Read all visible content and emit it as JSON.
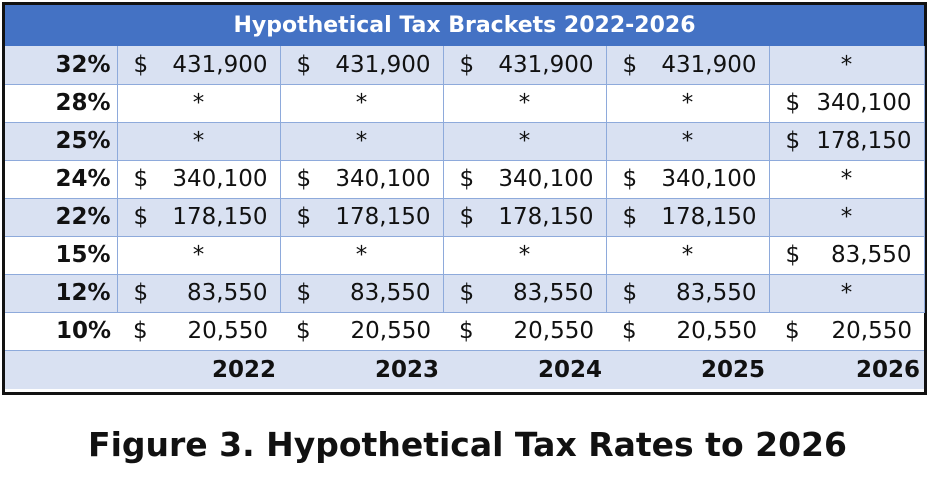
{
  "title": "Hypothetical Tax Brackets 2022-2026",
  "currency_symbol": "$",
  "rows": [
    {
      "rate": "32%",
      "values": [
        "431,900",
        "431,900",
        "431,900",
        "431,900",
        "*"
      ]
    },
    {
      "rate": "28%",
      "values": [
        "*",
        "*",
        "*",
        "*",
        "340,100"
      ]
    },
    {
      "rate": "25%",
      "values": [
        "*",
        "*",
        "*",
        "*",
        "178,150"
      ]
    },
    {
      "rate": "24%",
      "values": [
        "340,100",
        "340,100",
        "340,100",
        "340,100",
        "*"
      ]
    },
    {
      "rate": "22%",
      "values": [
        "178,150",
        "178,150",
        "178,150",
        "178,150",
        "*"
      ]
    },
    {
      "rate": "15%",
      "values": [
        "*",
        "*",
        "*",
        "*",
        "83,550"
      ]
    },
    {
      "rate": "12%",
      "values": [
        "83,550",
        "83,550",
        "83,550",
        "83,550",
        "*"
      ]
    },
    {
      "rate": "10%",
      "values": [
        "20,550",
        "20,550",
        "20,550",
        "20,550",
        "20,550"
      ]
    }
  ],
  "years": [
    "2022",
    "2023",
    "2024",
    "2025",
    "2026"
  ],
  "caption": "Figure 3. Hypothetical Tax Rates to 2026",
  "colors": {
    "header": "#4472c4",
    "band": "#d9e1f2",
    "border": "#8eaadb"
  }
}
